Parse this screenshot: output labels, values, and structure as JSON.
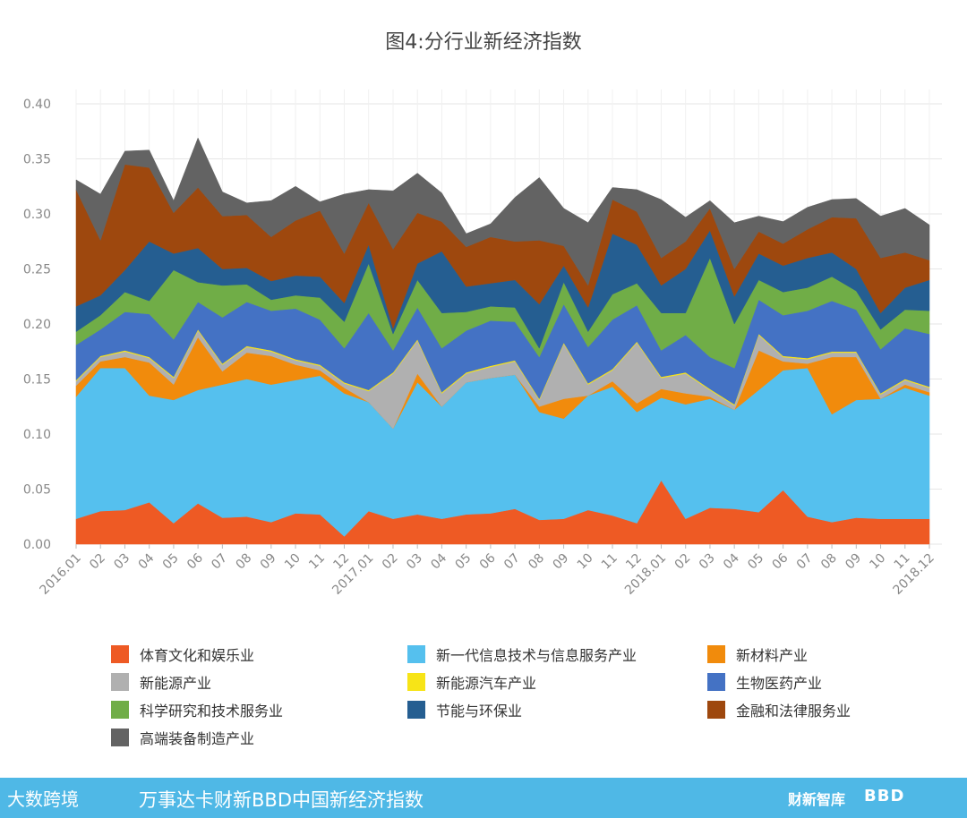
{
  "chart_data": {
    "type": "area",
    "stacked": true,
    "title": "图4:分行业新经济指数",
    "ylim": [
      0,
      0.4
    ],
    "yticks": [
      "0.00",
      "0.05",
      "0.10",
      "0.15",
      "0.20",
      "0.25",
      "0.30",
      "0.35",
      "0.40"
    ],
    "grid": true,
    "legend_position": "bottom",
    "categories": [
      "2016.01",
      "02",
      "03",
      "04",
      "05",
      "06",
      "07",
      "08",
      "09",
      "10",
      "11",
      "12",
      "2017.01",
      "02",
      "03",
      "04",
      "05",
      "06",
      "07",
      "08",
      "09",
      "10",
      "11",
      "12",
      "2018.01",
      "02",
      "03",
      "04",
      "05",
      "06",
      "07",
      "08",
      "09",
      "10",
      "11",
      "2018.12"
    ],
    "series": [
      {
        "name": "体育文化和娱乐业",
        "color": "#ee5a24",
        "values": [
          0.023,
          0.03,
          0.031,
          0.038,
          0.019,
          0.037,
          0.024,
          0.025,
          0.02,
          0.028,
          0.027,
          0.007,
          0.03,
          0.023,
          0.027,
          0.023,
          0.027,
          0.028,
          0.032,
          0.022,
          0.023,
          0.031,
          0.026,
          0.019,
          0.058,
          0.023,
          0.033,
          0.032,
          0.029,
          0.049,
          0.025,
          0.02,
          0.024,
          0.023,
          0.023,
          0.023
        ]
      },
      {
        "name": "新一代信息技术与信息服务产业",
        "color": "#55c0ee",
        "values": [
          0.111,
          0.13,
          0.129,
          0.097,
          0.112,
          0.103,
          0.121,
          0.125,
          0.125,
          0.121,
          0.126,
          0.13,
          0.099,
          0.082,
          0.12,
          0.102,
          0.12,
          0.123,
          0.122,
          0.098,
          0.091,
          0.104,
          0.117,
          0.101,
          0.075,
          0.104,
          0.099,
          0.09,
          0.111,
          0.109,
          0.135,
          0.098,
          0.107,
          0.109,
          0.119,
          0.112
        ]
      },
      {
        "name": "新材料产业",
        "color": "#f18b0c",
        "values": [
          0.01,
          0.006,
          0.01,
          0.03,
          0.014,
          0.048,
          0.012,
          0.024,
          0.026,
          0.014,
          0.005,
          0.005,
          0.0,
          0.0,
          0.008,
          0.0,
          0.0,
          0.0,
          0.0,
          0.005,
          0.018,
          0.0,
          0.005,
          0.008,
          0.008,
          0.01,
          0.002,
          0.0,
          0.036,
          0.008,
          0.004,
          0.052,
          0.039,
          0.0,
          0.003,
          0.003
        ]
      },
      {
        "name": "新能源产业",
        "color": "#b0b0b0",
        "values": [
          0.004,
          0.004,
          0.005,
          0.004,
          0.006,
          0.006,
          0.006,
          0.005,
          0.004,
          0.004,
          0.004,
          0.004,
          0.01,
          0.05,
          0.03,
          0.012,
          0.008,
          0.01,
          0.012,
          0.006,
          0.05,
          0.01,
          0.01,
          0.055,
          0.01,
          0.018,
          0.006,
          0.004,
          0.014,
          0.004,
          0.004,
          0.004,
          0.004,
          0.004,
          0.004,
          0.004
        ]
      },
      {
        "name": "新能源汽车产业",
        "color": "#f7e417",
        "values": [
          0.001,
          0.001,
          0.001,
          0.001,
          0.001,
          0.001,
          0.001,
          0.001,
          0.001,
          0.001,
          0.001,
          0.001,
          0.001,
          0.001,
          0.001,
          0.001,
          0.001,
          0.001,
          0.001,
          0.001,
          0.001,
          0.001,
          0.001,
          0.001,
          0.001,
          0.001,
          0.001,
          0.001,
          0.001,
          0.001,
          0.001,
          0.001,
          0.001,
          0.001,
          0.001,
          0.001
        ]
      },
      {
        "name": "生物医药产业",
        "color": "#4472c4",
        "values": [
          0.032,
          0.024,
          0.035,
          0.039,
          0.034,
          0.025,
          0.042,
          0.04,
          0.036,
          0.046,
          0.041,
          0.031,
          0.07,
          0.02,
          0.029,
          0.04,
          0.038,
          0.041,
          0.035,
          0.038,
          0.035,
          0.033,
          0.045,
          0.033,
          0.024,
          0.034,
          0.029,
          0.033,
          0.031,
          0.037,
          0.043,
          0.046,
          0.038,
          0.04,
          0.046,
          0.048
        ]
      },
      {
        "name": "科学研究和技术服务业",
        "color": "#70ad47",
        "values": [
          0.012,
          0.013,
          0.018,
          0.012,
          0.063,
          0.018,
          0.029,
          0.016,
          0.01,
          0.012,
          0.02,
          0.024,
          0.045,
          0.015,
          0.025,
          0.032,
          0.017,
          0.013,
          0.013,
          0.008,
          0.02,
          0.014,
          0.023,
          0.02,
          0.034,
          0.02,
          0.09,
          0.04,
          0.018,
          0.021,
          0.021,
          0.022,
          0.017,
          0.018,
          0.017,
          0.021
        ]
      },
      {
        "name": "节能与环保业",
        "color": "#255e91",
        "values": [
          0.023,
          0.018,
          0.02,
          0.054,
          0.015,
          0.031,
          0.015,
          0.015,
          0.017,
          0.018,
          0.019,
          0.017,
          0.017,
          0.005,
          0.015,
          0.056,
          0.023,
          0.021,
          0.025,
          0.04,
          0.015,
          0.022,
          0.055,
          0.035,
          0.025,
          0.04,
          0.025,
          0.025,
          0.024,
          0.024,
          0.027,
          0.022,
          0.02,
          0.015,
          0.02,
          0.028
        ]
      },
      {
        "name": "金融和法律服务业",
        "color": "#9e480e",
        "values": [
          0.106,
          0.05,
          0.096,
          0.067,
          0.037,
          0.055,
          0.048,
          0.048,
          0.04,
          0.05,
          0.06,
          0.045,
          0.038,
          0.072,
          0.046,
          0.027,
          0.036,
          0.042,
          0.035,
          0.058,
          0.018,
          0.02,
          0.031,
          0.03,
          0.025,
          0.025,
          0.02,
          0.025,
          0.02,
          0.02,
          0.026,
          0.032,
          0.046,
          0.05,
          0.032,
          0.018
        ]
      },
      {
        "name": "高端装备制造产业",
        "color": "#636363",
        "values": [
          0.009,
          0.042,
          0.012,
          0.016,
          0.011,
          0.045,
          0.022,
          0.011,
          0.033,
          0.031,
          0.008,
          0.054,
          0.012,
          0.053,
          0.036,
          0.026,
          0.012,
          0.012,
          0.04,
          0.057,
          0.034,
          0.057,
          0.011,
          0.02,
          0.053,
          0.022,
          0.007,
          0.042,
          0.014,
          0.02,
          0.02,
          0.016,
          0.018,
          0.038,
          0.04,
          0.032
        ]
      }
    ]
  },
  "footer": {
    "logo_text": "大数跨境",
    "title": "万事达卡财新BBD中国新经济指数",
    "brand1": "财新智库",
    "brand2": "BBD"
  }
}
